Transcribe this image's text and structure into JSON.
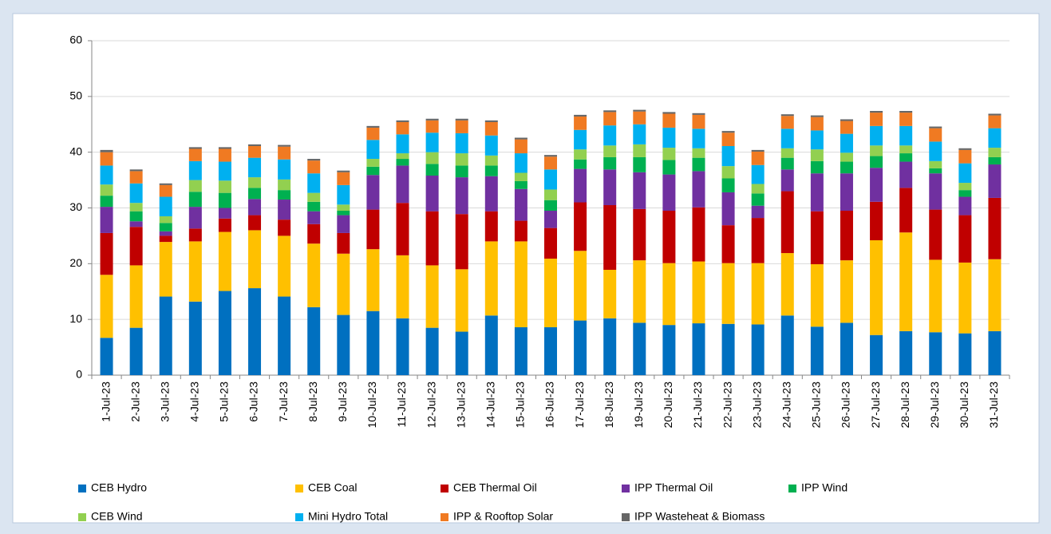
{
  "chart_data": {
    "type": "stacked_bar",
    "categories": [
      "1-Jul-23",
      "2-Jul-23",
      "3-Jul-23",
      "4-Jul-23",
      "5-Jul-23",
      "6-Jul-23",
      "7-Jul-23",
      "8-Jul-23",
      "9-Jul-23",
      "10-Jul-23",
      "11-Jul-23",
      "12-Jul-23",
      "13-Jul-23",
      "14-Jul-23",
      "15-Jul-23",
      "16-Jul-23",
      "17-Jul-23",
      "18-Jul-23",
      "19-Jul-23",
      "20-Jul-23",
      "21-Jul-23",
      "22-Jul-23",
      "23-Jul-23",
      "24-Jul-23",
      "25-Jul-23",
      "26-Jul-23",
      "27-Jul-23",
      "28-Jul-23",
      "29-Jul-23",
      "30-Jul-23",
      "31-Jul-23"
    ],
    "series": [
      {
        "name": "CEB Hydro",
        "color": "#0070c0",
        "values": [
          6.7,
          8.5,
          14.1,
          13.2,
          15.1,
          15.6,
          14.1,
          12.2,
          10.8,
          11.5,
          10.2,
          8.5,
          7.8,
          10.7,
          8.6,
          8.6,
          9.8,
          10.2,
          9.4,
          9.0,
          9.3,
          9.2,
          9.1,
          10.7,
          8.7,
          9.4,
          7.2,
          7.9,
          7.7,
          7.5,
          7.9
        ]
      },
      {
        "name": "CEB Coal",
        "color": "#ffc000",
        "values": [
          11.3,
          11.2,
          9.8,
          10.8,
          10.6,
          10.4,
          10.9,
          11.4,
          11.0,
          11.1,
          11.3,
          11.2,
          11.2,
          13.3,
          15.4,
          12.3,
          12.5,
          8.7,
          11.2,
          11.1,
          11.1,
          10.9,
          11.0,
          11.2,
          11.2,
          11.2,
          17.0,
          17.7,
          13.0,
          12.7,
          12.9
        ]
      },
      {
        "name": "CEB Thermal Oil",
        "color": "#c00000",
        "values": [
          7.5,
          6.9,
          1.1,
          2.3,
          2.4,
          2.7,
          2.9,
          3.5,
          3.7,
          7.1,
          9.4,
          9.7,
          9.9,
          5.4,
          3.7,
          5.5,
          8.7,
          11.6,
          9.2,
          9.4,
          9.7,
          6.8,
          8.1,
          11.1,
          9.5,
          8.9,
          6.9,
          8.0,
          9.0,
          8.5,
          11.0
        ]
      },
      {
        "name": "IPP Thermal Oil",
        "color": "#7030a0",
        "values": [
          4.7,
          1.0,
          0.8,
          3.9,
          1.9,
          2.9,
          3.6,
          2.3,
          3.2,
          6.2,
          6.7,
          6.4,
          6.6,
          6.3,
          5.7,
          3.1,
          6.0,
          6.4,
          6.6,
          6.5,
          6.5,
          5.9,
          2.2,
          3.9,
          6.8,
          6.7,
          6.1,
          4.7,
          6.5,
          3.3,
          6.0
        ]
      },
      {
        "name": "IPP Wind",
        "color": "#00b050",
        "values": [
          2.0,
          1.8,
          1.5,
          2.7,
          2.7,
          2.0,
          1.7,
          1.7,
          0.8,
          1.5,
          1.2,
          2.1,
          2.1,
          1.9,
          1.4,
          1.9,
          1.7,
          2.2,
          2.7,
          2.6,
          2.4,
          2.5,
          2.2,
          2.1,
          2.2,
          2.1,
          2.1,
          1.5,
          0.9,
          1.2,
          1.3
        ]
      },
      {
        "name": "CEB Wind",
        "color": "#92d050",
        "values": [
          2.0,
          1.5,
          1.2,
          2.1,
          2.2,
          1.9,
          1.9,
          1.6,
          1.1,
          1.4,
          1.0,
          2.1,
          2.2,
          1.8,
          1.5,
          1.9,
          1.8,
          2.1,
          2.3,
          2.2,
          1.7,
          2.2,
          1.7,
          1.7,
          2.1,
          1.6,
          1.9,
          1.4,
          1.3,
          1.3,
          1.7
        ]
      },
      {
        "name": "Mini Hydro Total",
        "color": "#00b0f0",
        "values": [
          3.4,
          3.5,
          3.5,
          3.4,
          3.4,
          3.5,
          3.6,
          3.5,
          3.5,
          3.4,
          3.4,
          3.5,
          3.6,
          3.6,
          3.5,
          3.6,
          3.5,
          3.6,
          3.6,
          3.6,
          3.5,
          3.6,
          3.4,
          3.5,
          3.4,
          3.4,
          3.5,
          3.5,
          3.5,
          3.5,
          3.5
        ]
      },
      {
        "name": "IPP & Rooftop Solar",
        "color": "#f07a22",
        "values": [
          2.4,
          2.2,
          2.1,
          2.2,
          2.3,
          2.1,
          2.3,
          2.3,
          2.3,
          2.2,
          2.2,
          2.2,
          2.3,
          2.4,
          2.5,
          2.3,
          2.4,
          2.4,
          2.3,
          2.5,
          2.5,
          2.4,
          2.4,
          2.3,
          2.4,
          2.3,
          2.4,
          2.4,
          2.4,
          2.4,
          2.3
        ]
      },
      {
        "name": "IPP Wasteheat & Biomass",
        "color": "#666666",
        "values": [
          0.4,
          0.3,
          0.3,
          0.3,
          0.3,
          0.3,
          0.3,
          0.3,
          0.3,
          0.3,
          0.3,
          0.3,
          0.3,
          0.3,
          0.3,
          0.3,
          0.3,
          0.3,
          0.3,
          0.3,
          0.3,
          0.3,
          0.3,
          0.3,
          0.3,
          0.3,
          0.3,
          0.3,
          0.3,
          0.3,
          0.3
        ]
      }
    ],
    "ylim": [
      0,
      60
    ],
    "yticks": [
      0,
      10,
      20,
      30,
      40,
      50,
      60
    ],
    "grid": true
  }
}
